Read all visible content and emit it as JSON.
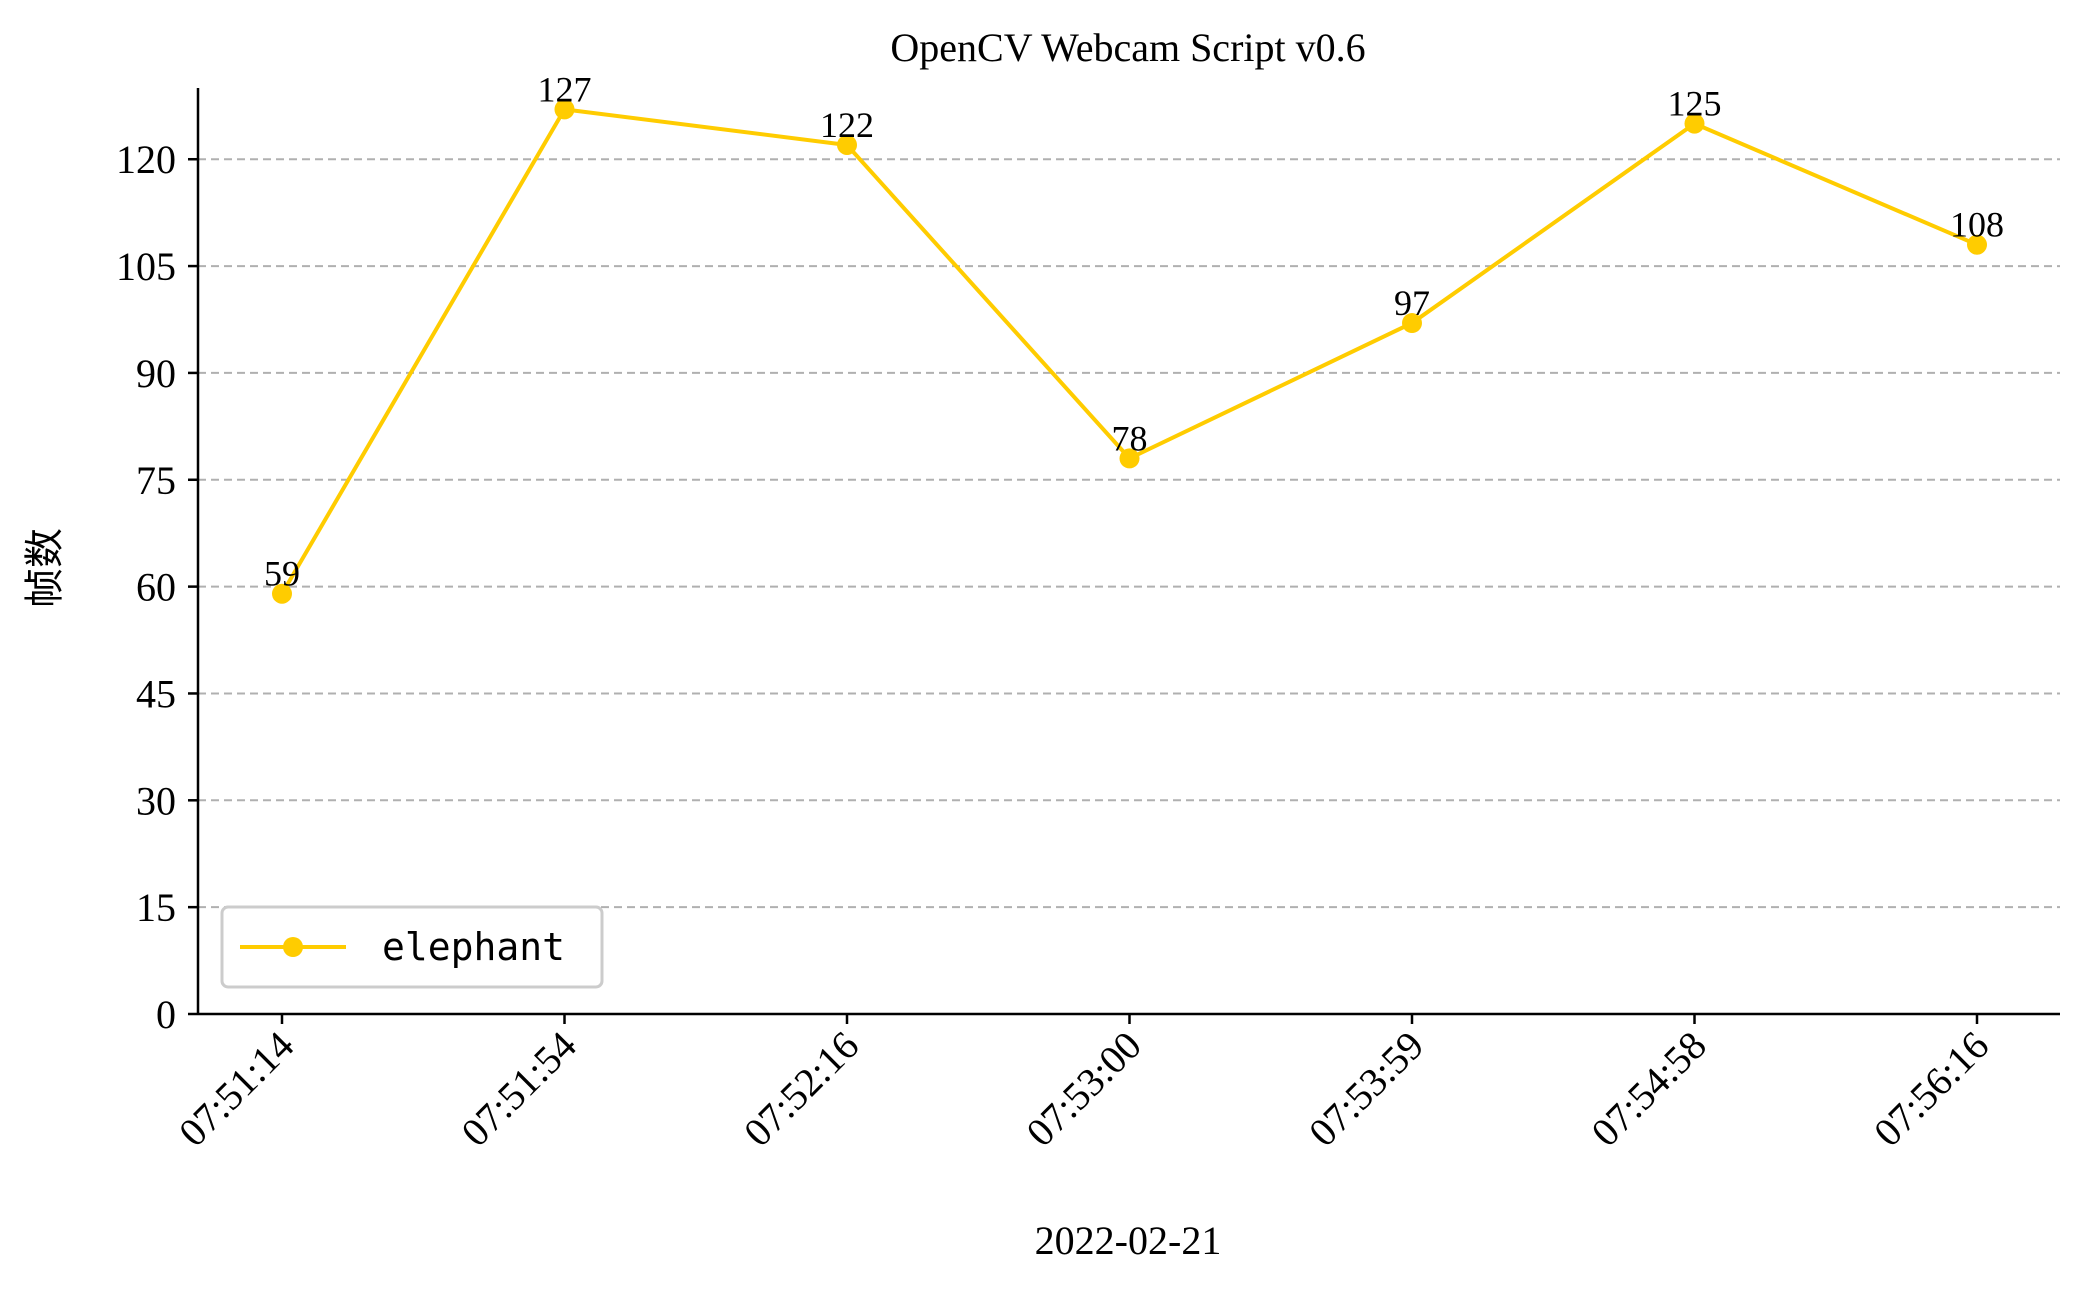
{
  "chart_data": {
    "type": "line",
    "title": "OpenCV Webcam Script v0.6",
    "xlabel": "2022-02-21",
    "ylabel": "帧数",
    "categories": [
      "07:51:14",
      "07:51:54",
      "07:52:16",
      "07:53:00",
      "07:53:59",
      "07:54:58",
      "07:56:16"
    ],
    "series": [
      {
        "name": "elephant",
        "values": [
          59,
          127,
          122,
          78,
          97,
          125,
          108
        ],
        "color": "#FFCC00"
      }
    ],
    "ylim": [
      0,
      130
    ],
    "yticks": [
      0,
      15,
      30,
      45,
      60,
      75,
      90,
      105,
      120
    ],
    "grid": "horizontal-dashed",
    "legend_position": "lower-left",
    "data_labels": true
  }
}
